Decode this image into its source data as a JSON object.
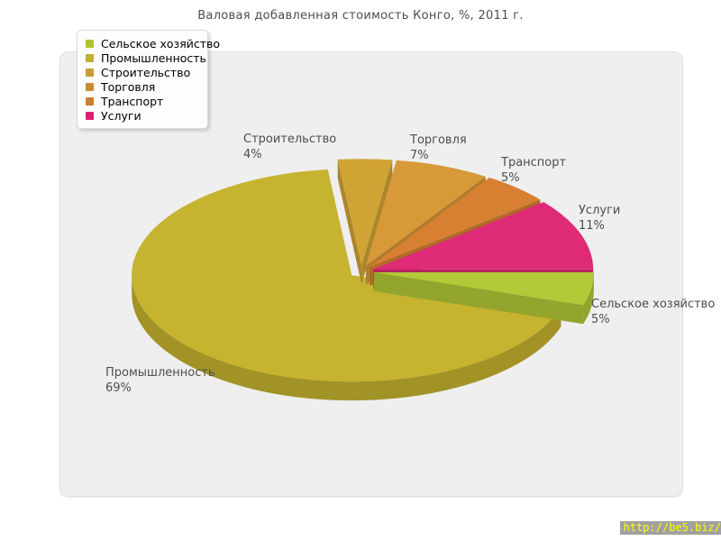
{
  "page": {
    "title": "Валовая добавленная стоимость Конго, %, 2011 г.",
    "source_link": "http://be5.biz/"
  },
  "legend": {
    "position": "top-left",
    "items": [
      {
        "id": "agriculture",
        "label": "Сельское хозяйство",
        "color": "#b0c434"
      },
      {
        "id": "industry",
        "label": "Промышленность",
        "color": "#bfae33"
      },
      {
        "id": "construction",
        "label": "Строительство",
        "color": "#c89b35"
      },
      {
        "id": "trade",
        "label": "Торговля",
        "color": "#cc8833"
      },
      {
        "id": "transport",
        "label": "Транспорт",
        "color": "#cd7e2e"
      },
      {
        "id": "services",
        "label": "Услуги",
        "color": "#d6216d"
      }
    ]
  },
  "chart_data": {
    "type": "pie",
    "title": "Валовая добавленная стоимость Конго, %, 2011 г.",
    "unit": "%",
    "effect_3d": true,
    "exploded": true,
    "start_angle_deg": 0,
    "direction": "clockwise",
    "legend_position": "top-left",
    "slices": [
      {
        "id": "agriculture",
        "label": "Сельское хозяйство",
        "value": 5,
        "color": "#b4c938"
      },
      {
        "id": "industry",
        "label": "Промышленность",
        "value": 69,
        "color": "#c6b32f"
      },
      {
        "id": "construction",
        "label": "Строительство",
        "value": 4,
        "color": "#d0a434"
      },
      {
        "id": "trade",
        "label": "Торговля",
        "value": 7,
        "color": "#d89939"
      },
      {
        "id": "transport",
        "label": "Транспорт",
        "value": 5,
        "color": "#d88031"
      },
      {
        "id": "services",
        "label": "Услуги",
        "value": 11,
        "color": "#df2a77"
      }
    ]
  }
}
